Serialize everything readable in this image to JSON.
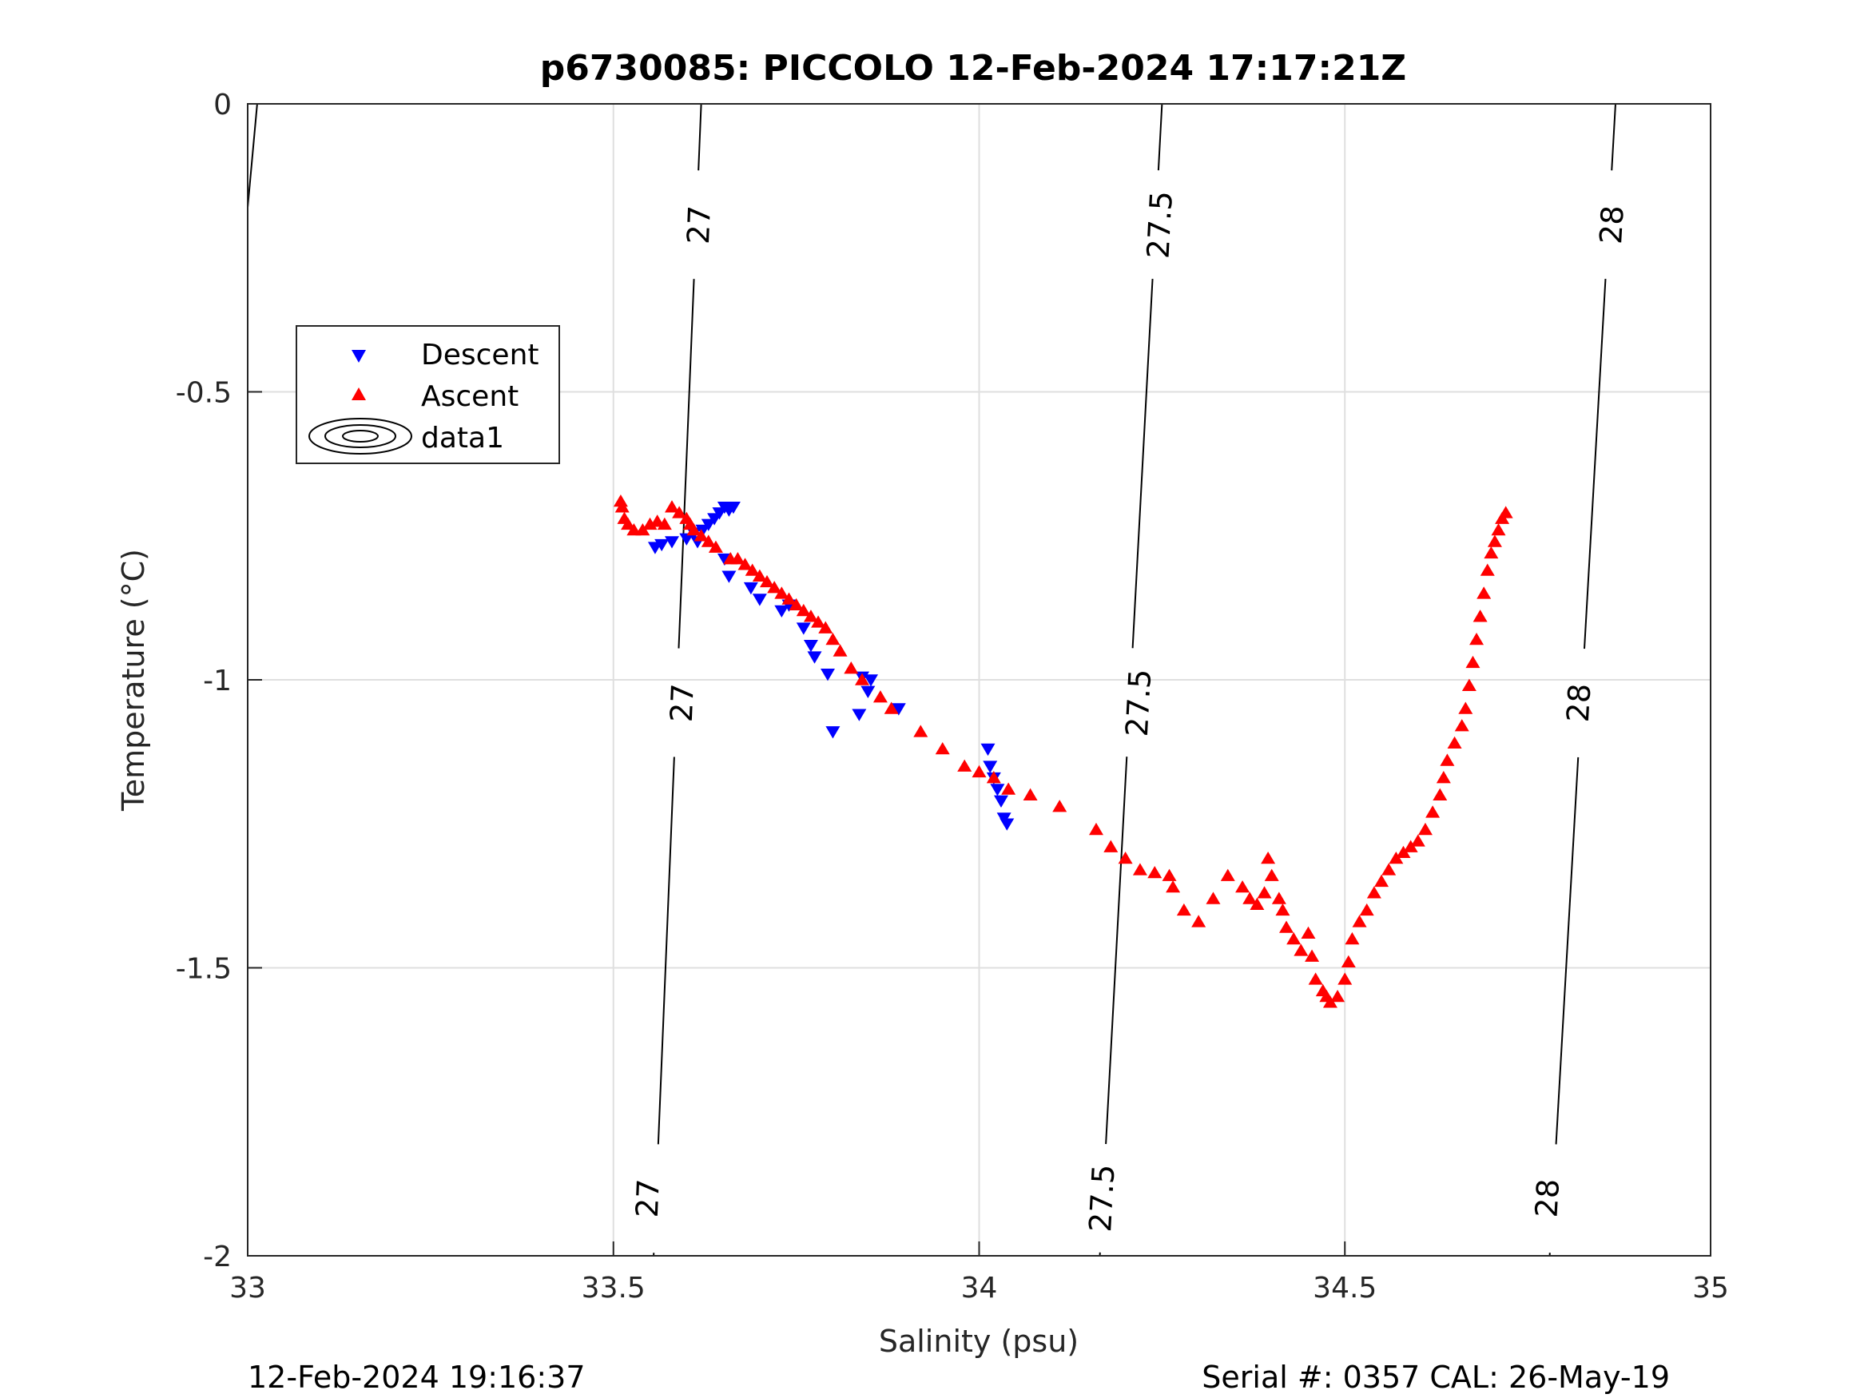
{
  "chart_data": {
    "type": "scatter",
    "title": "p6730085: PICCOLO 12-Feb-2024 17:17:21Z",
    "xlabel": "Salinity (psu)",
    "ylabel": "Temperature (°C)",
    "xlim": [
      33,
      35
    ],
    "ylim": [
      -2,
      0
    ],
    "xticks": [
      "33",
      "33.5",
      "34",
      "34.5",
      "35"
    ],
    "yticks": [
      "0",
      "-0.5",
      "-1",
      "-1.5",
      "-2"
    ],
    "grid": true,
    "legend_position": "upper-left",
    "legend": [
      "Descent",
      "Ascent",
      "data1"
    ],
    "footer_left": "12-Feb-2024 19:16:37",
    "footer_right": "Serial #: 0357  CAL: 26-May-19",
    "series": [
      {
        "name": "Descent",
        "marker": "triangle-down",
        "color": "#0000ff",
        "points": [
          [
            33.557,
            -0.77
          ],
          [
            33.566,
            -0.765
          ],
          [
            33.58,
            -0.76
          ],
          [
            33.6,
            -0.755
          ],
          [
            33.615,
            -0.76
          ],
          [
            33.622,
            -0.74
          ],
          [
            33.63,
            -0.73
          ],
          [
            33.638,
            -0.72
          ],
          [
            33.645,
            -0.71
          ],
          [
            33.652,
            -0.7
          ],
          [
            33.658,
            -0.705
          ],
          [
            33.664,
            -0.7
          ],
          [
            33.61,
            -0.745
          ],
          [
            33.652,
            -0.79
          ],
          [
            33.658,
            -0.82
          ],
          [
            33.688,
            -0.84
          ],
          [
            33.7,
            -0.86
          ],
          [
            33.73,
            -0.88
          ],
          [
            33.74,
            -0.87
          ],
          [
            33.76,
            -0.91
          ],
          [
            33.77,
            -0.94
          ],
          [
            33.775,
            -0.96
          ],
          [
            33.793,
            -0.99
          ],
          [
            33.8,
            -1.09
          ],
          [
            33.836,
            -1.06
          ],
          [
            33.84,
            -0.995
          ],
          [
            33.848,
            -1.02
          ],
          [
            33.852,
            -1.0
          ],
          [
            33.89,
            -1.05
          ],
          [
            34.012,
            -1.12
          ],
          [
            34.015,
            -1.15
          ],
          [
            34.02,
            -1.17
          ],
          [
            34.025,
            -1.19
          ],
          [
            34.03,
            -1.21
          ],
          [
            34.034,
            -1.24
          ],
          [
            34.038,
            -1.25
          ]
        ]
      },
      {
        "name": "Ascent",
        "marker": "triangle-up",
        "color": "#ff0000",
        "points": [
          [
            33.51,
            -0.69
          ],
          [
            33.512,
            -0.7
          ],
          [
            33.515,
            -0.72
          ],
          [
            33.52,
            -0.73
          ],
          [
            33.528,
            -0.74
          ],
          [
            33.54,
            -0.74
          ],
          [
            33.55,
            -0.73
          ],
          [
            33.56,
            -0.725
          ],
          [
            33.57,
            -0.73
          ],
          [
            33.58,
            -0.7
          ],
          [
            33.59,
            -0.71
          ],
          [
            33.6,
            -0.72
          ],
          [
            33.605,
            -0.73
          ],
          [
            33.61,
            -0.74
          ],
          [
            33.62,
            -0.75
          ],
          [
            33.63,
            -0.76
          ],
          [
            33.64,
            -0.77
          ],
          [
            33.66,
            -0.79
          ],
          [
            33.67,
            -0.79
          ],
          [
            33.68,
            -0.8
          ],
          [
            33.69,
            -0.81
          ],
          [
            33.7,
            -0.82
          ],
          [
            33.71,
            -0.83
          ],
          [
            33.72,
            -0.84
          ],
          [
            33.73,
            -0.85
          ],
          [
            33.74,
            -0.86
          ],
          [
            33.75,
            -0.87
          ],
          [
            33.76,
            -0.88
          ],
          [
            33.77,
            -0.89
          ],
          [
            33.78,
            -0.9
          ],
          [
            33.79,
            -0.91
          ],
          [
            33.8,
            -0.93
          ],
          [
            33.81,
            -0.95
          ],
          [
            33.825,
            -0.98
          ],
          [
            33.84,
            -1.0
          ],
          [
            33.865,
            -1.03
          ],
          [
            33.88,
            -1.05
          ],
          [
            33.92,
            -1.09
          ],
          [
            33.95,
            -1.12
          ],
          [
            33.98,
            -1.15
          ],
          [
            34.0,
            -1.16
          ],
          [
            34.02,
            -1.17
          ],
          [
            34.04,
            -1.19
          ],
          [
            34.07,
            -1.2
          ],
          [
            34.11,
            -1.22
          ],
          [
            34.16,
            -1.26
          ],
          [
            34.18,
            -1.29
          ],
          [
            34.2,
            -1.31
          ],
          [
            34.22,
            -1.33
          ],
          [
            34.24,
            -1.335
          ],
          [
            34.26,
            -1.34
          ],
          [
            34.265,
            -1.36
          ],
          [
            34.28,
            -1.4
          ],
          [
            34.3,
            -1.42
          ],
          [
            34.32,
            -1.38
          ],
          [
            34.34,
            -1.34
          ],
          [
            34.36,
            -1.36
          ],
          [
            34.37,
            -1.38
          ],
          [
            34.38,
            -1.39
          ],
          [
            34.39,
            -1.37
          ],
          [
            34.395,
            -1.31
          ],
          [
            34.4,
            -1.34
          ],
          [
            34.41,
            -1.38
          ],
          [
            34.415,
            -1.4
          ],
          [
            34.42,
            -1.43
          ],
          [
            34.43,
            -1.45
          ],
          [
            34.44,
            -1.47
          ],
          [
            34.45,
            -1.44
          ],
          [
            34.455,
            -1.48
          ],
          [
            34.46,
            -1.52
          ],
          [
            34.47,
            -1.54
          ],
          [
            34.475,
            -1.55
          ],
          [
            34.48,
            -1.56
          ],
          [
            34.49,
            -1.55
          ],
          [
            34.5,
            -1.52
          ],
          [
            34.505,
            -1.49
          ],
          [
            34.51,
            -1.45
          ],
          [
            34.52,
            -1.42
          ],
          [
            34.53,
            -1.4
          ],
          [
            34.54,
            -1.37
          ],
          [
            34.55,
            -1.35
          ],
          [
            34.56,
            -1.33
          ],
          [
            34.57,
            -1.31
          ],
          [
            34.58,
            -1.3
          ],
          [
            34.59,
            -1.29
          ],
          [
            34.6,
            -1.28
          ],
          [
            34.61,
            -1.26
          ],
          [
            34.62,
            -1.23
          ],
          [
            34.63,
            -1.2
          ],
          [
            34.635,
            -1.17
          ],
          [
            34.64,
            -1.14
          ],
          [
            34.65,
            -1.11
          ],
          [
            34.66,
            -1.08
          ],
          [
            34.665,
            -1.05
          ],
          [
            34.67,
            -1.01
          ],
          [
            34.675,
            -0.97
          ],
          [
            34.68,
            -0.93
          ],
          [
            34.685,
            -0.89
          ],
          [
            34.69,
            -0.85
          ],
          [
            34.695,
            -0.81
          ],
          [
            34.7,
            -0.78
          ],
          [
            34.705,
            -0.76
          ],
          [
            34.71,
            -0.74
          ],
          [
            34.715,
            -0.72
          ],
          [
            34.72,
            -0.71
          ]
        ]
      }
    ],
    "contours": [
      {
        "label": "27",
        "points": [
          [
            33.62,
            0
          ],
          [
            33.555,
            -2
          ]
        ],
        "label_positions": [
          [
            33.617,
            -0.21
          ],
          [
            33.594,
            -1.04
          ],
          [
            33.547,
            -1.9
          ]
        ]
      },
      {
        "label": "27.5",
        "points": [
          [
            34.25,
            0
          ],
          [
            34.165,
            -2
          ]
        ],
        "label_positions": [
          [
            34.247,
            -0.21
          ],
          [
            34.218,
            -1.04
          ],
          [
            34.168,
            -1.9
          ]
        ]
      },
      {
        "label": "28",
        "points": [
          [
            34.87,
            0
          ],
          [
            34.78,
            -2
          ]
        ],
        "label_positions": [
          [
            34.865,
            -0.21
          ],
          [
            34.82,
            -1.04
          ],
          [
            34.777,
            -1.9
          ]
        ]
      }
    ]
  }
}
